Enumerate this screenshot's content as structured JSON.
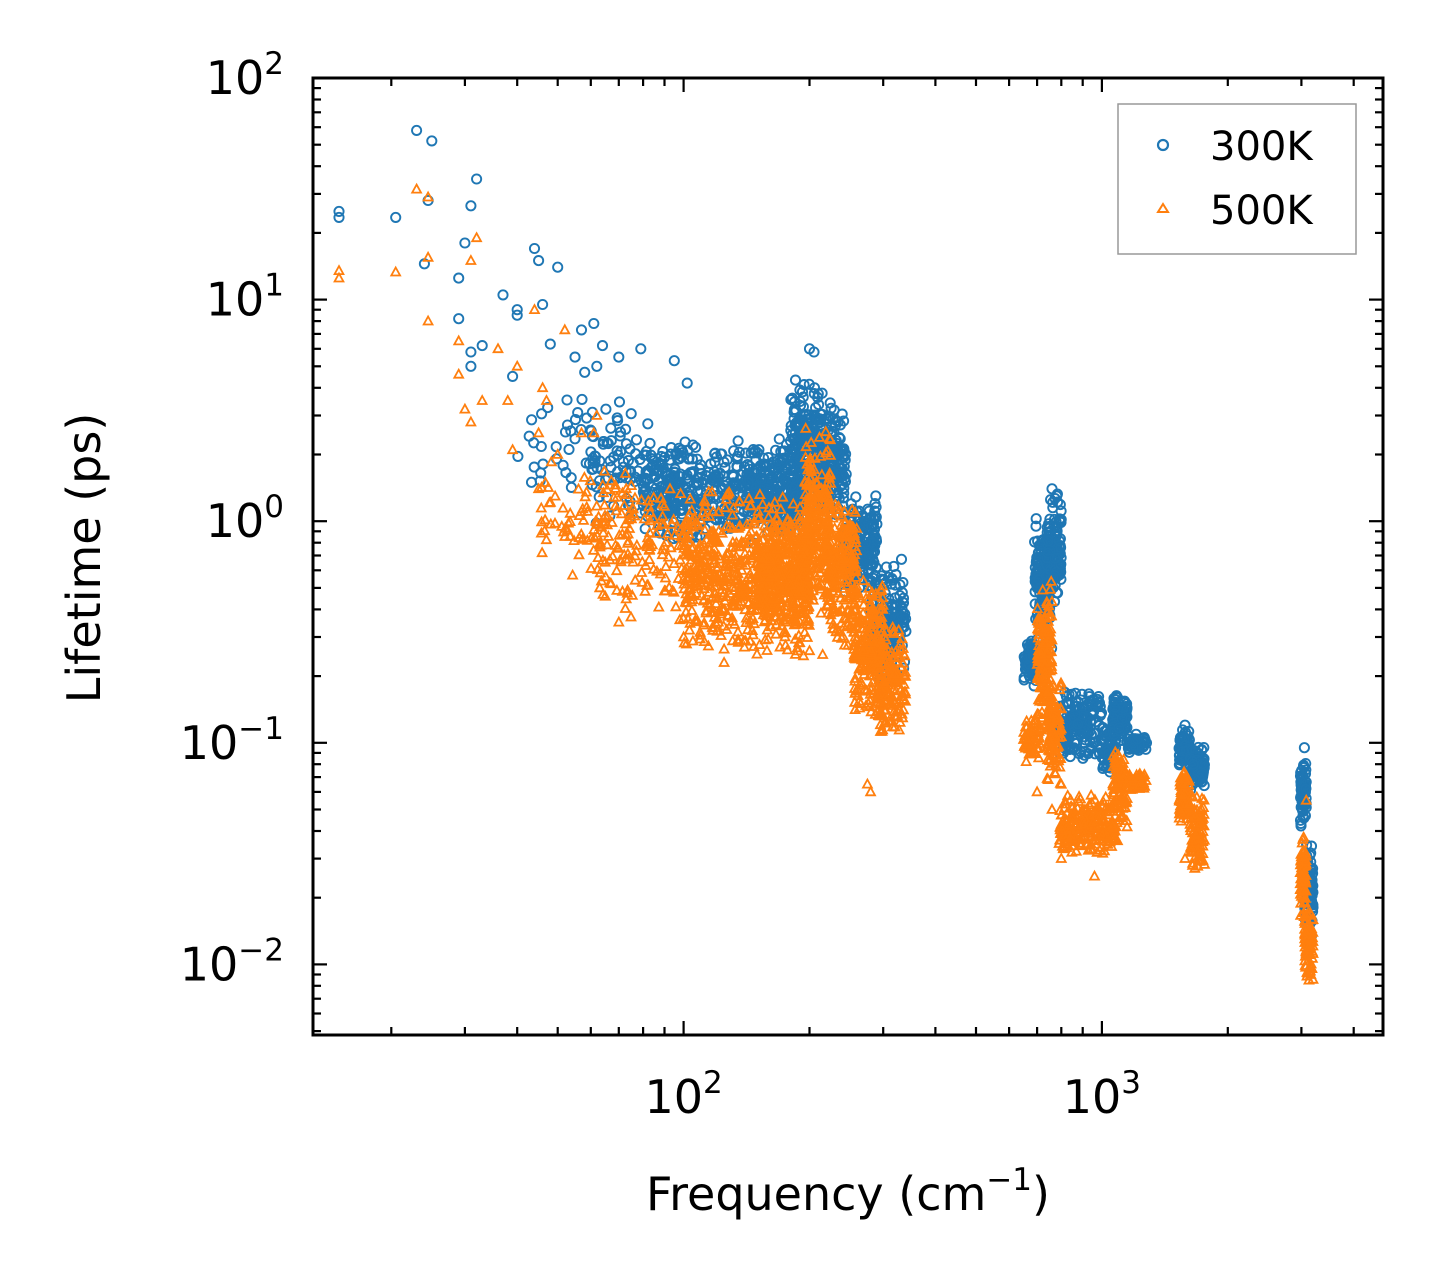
{
  "chart_data": {
    "type": "scatter",
    "title": "",
    "xlabel": "Frequency (cm",
    "xlabel_exp": "−1",
    "xlabel_close": ")",
    "ylabel": "Lifetime (ps)",
    "xscale": "log",
    "yscale": "log",
    "xlim": [
      13,
      4700
    ],
    "ylim": [
      0.0048,
      100
    ],
    "legend_position": "top-right",
    "x_tick_labels": [
      {
        "base": "10",
        "exp": "2",
        "value": 100
      },
      {
        "base": "10",
        "exp": "3",
        "value": 1000
      }
    ],
    "y_tick_labels": [
      {
        "base": "10",
        "exp": "2",
        "value": 100
      },
      {
        "base": "10",
        "exp": "1",
        "value": 10
      },
      {
        "base": "10",
        "exp": "0",
        "value": 1
      },
      {
        "base": "10",
        "exp": "−1",
        "value": 0.1
      },
      {
        "base": "10",
        "exp": "−2",
        "value": 0.01
      }
    ],
    "series": [
      {
        "name": "300K",
        "marker": "circle",
        "color": "#1f77b4",
        "explicit_points": [
          [
            15,
            25
          ],
          [
            15,
            23.5
          ],
          [
            20.5,
            23.5
          ],
          [
            23,
            58
          ],
          [
            24,
            14.5
          ],
          [
            24.5,
            28
          ],
          [
            25,
            52
          ],
          [
            29,
            12.5
          ],
          [
            29,
            8.2
          ],
          [
            30,
            18
          ],
          [
            31,
            26.5
          ],
          [
            31,
            5.8
          ],
          [
            31,
            5
          ],
          [
            32,
            35
          ],
          [
            33,
            6.2
          ],
          [
            37,
            10.5
          ],
          [
            39,
            4.5
          ],
          [
            40,
            9
          ],
          [
            40,
            8.5
          ],
          [
            44,
            17
          ],
          [
            45,
            15
          ],
          [
            46,
            9.5
          ],
          [
            48,
            6.3
          ],
          [
            50,
            14
          ],
          [
            55,
            5.5
          ],
          [
            57,
            7.3
          ],
          [
            58,
            4.7
          ],
          [
            61,
            7.8
          ],
          [
            62,
            5
          ],
          [
            64,
            6.2
          ],
          [
            70,
            5.5
          ],
          [
            79,
            6
          ],
          [
            95,
            5.3
          ],
          [
            102,
            4.2
          ],
          [
            200,
            6
          ],
          [
            205,
            5.8
          ],
          [
            288,
            1.3
          ],
          [
            760,
            1.4
          ],
          [
            780,
            1.3
          ],
          [
            1090,
            0.16
          ],
          [
            1580,
            0.12
          ],
          [
            3050,
            0.095
          ]
        ],
        "clusters": [
          {
            "f": [
              40,
              75
            ],
            "lt": [
              1.3,
              4.0
            ],
            "n": 50
          },
          {
            "f": [
              60,
              100
            ],
            "lt": [
              0.9,
              3.0
            ],
            "n": 90
          },
          {
            "f": [
              80,
              190
            ],
            "lt": [
              0.75,
              2.4
            ],
            "n": 450
          },
          {
            "f": [
              140,
              200
            ],
            "lt": [
              0.9,
              2.2
            ],
            "n": 160
          },
          {
            "f": [
              180,
              215
            ],
            "lt": [
              1.2,
              4.8
            ],
            "n": 170
          },
          {
            "f": [
              210,
              245
            ],
            "lt": [
              1.0,
              3.5
            ],
            "n": 180
          },
          {
            "f": [
              240,
              290
            ],
            "lt": [
              0.45,
              1.3
            ],
            "n": 180
          },
          {
            "f": [
              280,
              340
            ],
            "lt": [
              0.18,
              0.7
            ],
            "n": 170
          },
          {
            "f": [
              650,
              700
            ],
            "lt": [
              0.17,
              0.3
            ],
            "n": 60
          },
          {
            "f": [
              690,
              760
            ],
            "lt": [
              0.25,
              1.1
            ],
            "n": 160
          },
          {
            "f": [
              740,
              800
            ],
            "lt": [
              0.4,
              1.35
            ],
            "n": 120
          },
          {
            "f": [
              790,
              1000
            ],
            "lt": [
              0.08,
              0.18
            ],
            "n": 170
          },
          {
            "f": [
              1000,
              1080
            ],
            "lt": [
              0.07,
              0.12
            ],
            "n": 60
          },
          {
            "f": [
              1060,
              1150
            ],
            "lt": [
              0.1,
              0.165
            ],
            "n": 90
          },
          {
            "f": [
              1150,
              1280
            ],
            "lt": [
              0.09,
              0.11
            ],
            "n": 50
          },
          {
            "f": [
              1530,
              1620
            ],
            "lt": [
              0.075,
              0.12
            ],
            "n": 80
          },
          {
            "f": [
              1620,
              1760
            ],
            "lt": [
              0.06,
              0.1
            ],
            "n": 80
          },
          {
            "f": [
              2980,
              3080
            ],
            "lt": [
              0.04,
              0.085
            ],
            "n": 70
          },
          {
            "f": [
              3050,
              3200
            ],
            "lt": [
              0.012,
              0.04
            ],
            "n": 70
          }
        ]
      },
      {
        "name": "500K",
        "marker": "triangle",
        "color": "#ff7f0e",
        "explicit_points": [
          [
            15,
            13.5
          ],
          [
            15,
            12.5
          ],
          [
            20.5,
            13.3
          ],
          [
            23,
            31.5
          ],
          [
            24.5,
            29
          ],
          [
            24.5,
            15.5
          ],
          [
            24.5,
            8
          ],
          [
            29,
            6.5
          ],
          [
            29,
            4.6
          ],
          [
            30,
            3.2
          ],
          [
            31,
            2.8
          ],
          [
            31,
            15
          ],
          [
            32,
            19
          ],
          [
            33,
            3.5
          ],
          [
            36,
            6
          ],
          [
            38,
            3.5
          ],
          [
            39,
            2.1
          ],
          [
            40,
            5
          ],
          [
            44,
            9
          ],
          [
            45,
            2.5
          ],
          [
            45,
            1.4
          ],
          [
            46,
            4
          ],
          [
            47,
            3.5
          ],
          [
            50,
            2
          ],
          [
            52,
            7.3
          ],
          [
            57,
            2.5
          ],
          [
            61,
            2.5
          ],
          [
            62,
            3
          ],
          [
            63,
            0.5
          ],
          [
            70,
            0.35
          ],
          [
            100,
            0.3
          ],
          [
            125,
            0.23
          ],
          [
            170,
            0.27
          ],
          [
            200,
            0.26
          ],
          [
            215,
            0.25
          ],
          [
            275,
            0.065
          ],
          [
            280,
            0.06
          ],
          [
            700,
            0.06
          ],
          [
            760,
            0.05
          ],
          [
            800,
            0.03
          ],
          [
            960,
            0.025
          ],
          [
            1580,
            0.03
          ],
          [
            3080,
            0.055
          ]
        ],
        "clusters": [
          {
            "f": [
              45,
              75
            ],
            "lt": [
              0.5,
              2.0
            ],
            "n": 70
          },
          {
            "f": [
              60,
              110
            ],
            "lt": [
              0.35,
              1.6
            ],
            "n": 170
          },
          {
            "f": [
              100,
              200
            ],
            "lt": [
              0.24,
              1.4
            ],
            "n": 650
          },
          {
            "f": [
              150,
              200
            ],
            "lt": [
              0.3,
              1.1
            ],
            "n": 220
          },
          {
            "f": [
              195,
              225
            ],
            "lt": [
              0.35,
              2.8
            ],
            "n": 220
          },
          {
            "f": [
              220,
              260
            ],
            "lt": [
              0.25,
              1.4
            ],
            "n": 220
          },
          {
            "f": [
              255,
              300
            ],
            "lt": [
              0.12,
              0.6
            ],
            "n": 200
          },
          {
            "f": [
              290,
              340
            ],
            "lt": [
              0.1,
              0.35
            ],
            "n": 160
          },
          {
            "f": [
              650,
              710
            ],
            "lt": [
              0.08,
              0.14
            ],
            "n": 60
          },
          {
            "f": [
              700,
              760
            ],
            "lt": [
              0.1,
              0.55
            ],
            "n": 160
          },
          {
            "f": [
              740,
              800
            ],
            "lt": [
              0.06,
              0.2
            ],
            "n": 100
          },
          {
            "f": [
              790,
              1000
            ],
            "lt": [
              0.03,
              0.06
            ],
            "n": 180
          },
          {
            "f": [
              1000,
              1090
            ],
            "lt": [
              0.03,
              0.06
            ],
            "n": 70
          },
          {
            "f": [
              1060,
              1150
            ],
            "lt": [
              0.04,
              0.1
            ],
            "n": 90
          },
          {
            "f": [
              1150,
              1280
            ],
            "lt": [
              0.06,
              0.075
            ],
            "n": 50
          },
          {
            "f": [
              1530,
              1620
            ],
            "lt": [
              0.04,
              0.08
            ],
            "n": 80
          },
          {
            "f": [
              1620,
              1760
            ],
            "lt": [
              0.025,
              0.06
            ],
            "n": 90
          },
          {
            "f": [
              2980,
              3080
            ],
            "lt": [
              0.015,
              0.04
            ],
            "n": 70
          },
          {
            "f": [
              3050,
              3200
            ],
            "lt": [
              0.0078,
              0.02
            ],
            "n": 80
          }
        ]
      }
    ]
  }
}
